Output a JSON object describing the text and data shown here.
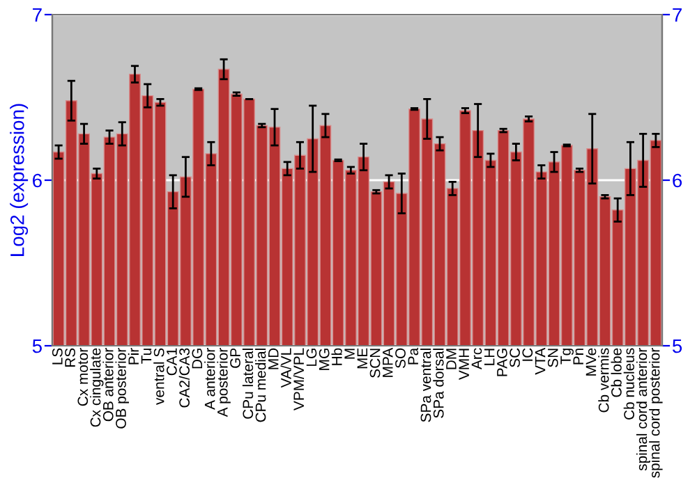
{
  "chart_data": {
    "type": "bar",
    "ylabel": "Log2 (expression)",
    "categories": [
      "LS",
      "RS",
      "Cx motor",
      "Cx cingulate",
      "OB anterior",
      "OB posterior",
      "Pir",
      "Tu",
      "ventral S",
      "CA1",
      "CA2/CA3",
      "DG",
      "A anterior",
      "A posterior",
      "GP",
      "CPu lateral",
      "CPu medial",
      "MD",
      "VA/VL",
      "VPM/VPL",
      "LG",
      "MG",
      "Hb",
      "M",
      "ME",
      "SCN",
      "MPA",
      "SO",
      "Pa",
      "SPa ventral",
      "SPa dorsal",
      "DM",
      "VMH",
      "Arc",
      "LH",
      "PAG",
      "SC",
      "IC",
      "VTA",
      "SN",
      "Tg",
      "Pn",
      "MVe",
      "Cb vermis",
      "Cb lobe",
      "Cb nucleus",
      "spinal cord anterior",
      "spinal cord posterior"
    ],
    "values": [
      6.17,
      6.48,
      6.28,
      6.04,
      6.26,
      6.28,
      6.64,
      6.51,
      6.47,
      5.93,
      6.02,
      6.55,
      6.16,
      6.67,
      6.52,
      6.49,
      6.33,
      6.32,
      6.07,
      6.15,
      6.25,
      6.33,
      6.12,
      6.06,
      6.14,
      5.93,
      5.99,
      5.92,
      6.43,
      6.37,
      6.22,
      5.95,
      6.42,
      6.3,
      6.12,
      6.3,
      6.17,
      6.37,
      6.05,
      6.11,
      6.21,
      6.06,
      6.19,
      5.9,
      5.82,
      6.07,
      6.12,
      6.24
    ],
    "errors": [
      0.04,
      0.12,
      0.06,
      0.03,
      0.04,
      0.07,
      0.05,
      0.07,
      0.02,
      0.1,
      0.12,
      0.005,
      0.07,
      0.06,
      0.01,
      null,
      0.01,
      0.11,
      0.04,
      0.08,
      0.2,
      0.07,
      0.005,
      0.02,
      0.08,
      0.01,
      0.04,
      0.12,
      0.005,
      0.12,
      0.04,
      0.04,
      0.015,
      0.16,
      0.04,
      0.01,
      0.05,
      0.015,
      0.04,
      0.06,
      0.005,
      0.01,
      0.21,
      0.01,
      0.07,
      0.16,
      0.16,
      0.04
    ],
    "color": "#b83333",
    "ylim": [
      5,
      7
    ],
    "yticks": [
      5,
      6,
      7
    ],
    "y2lim": [
      5,
      7
    ],
    "y2ticks": [
      5,
      6,
      7
    ],
    "grid": "y"
  }
}
